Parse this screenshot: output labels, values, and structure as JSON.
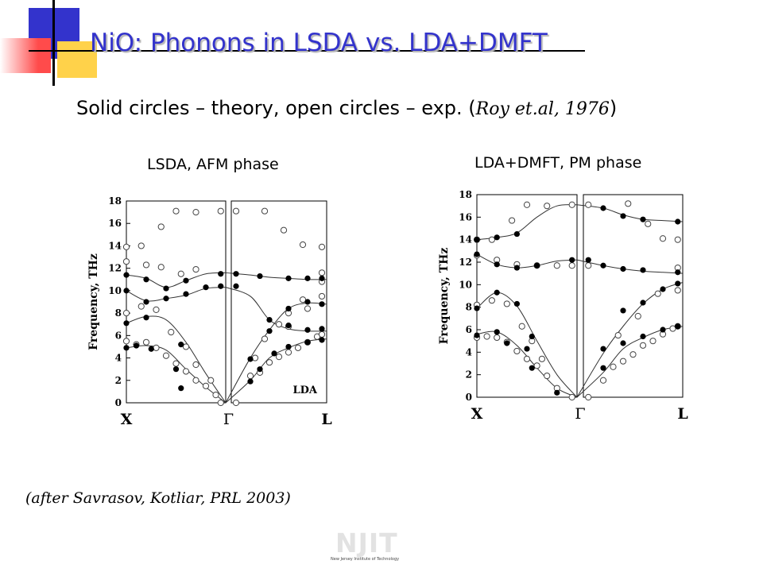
{
  "slide": {
    "title": "NiO: Phonons in LSDA vs. LDA+DMFT",
    "subtitle_main": "Solid circles – theory, open circles – exp. (",
    "subtitle_ref": "Roy et.al, 1976",
    "subtitle_close": ")",
    "citation": "(after Savrasov, Kotliar, PRL 2003)",
    "logo_text": "NJIT",
    "logo_subtext": "New Jersey Institute of Technology",
    "colors": {
      "title": "#3333cc",
      "deco_blue": "#3333cc",
      "deco_yellow": "#ffd24a",
      "deco_red": "#ff4b4b"
    }
  },
  "chart_data": [
    {
      "type": "scatter",
      "caption": "LSDA, AFM phase",
      "ylabel": "Frequency, THz",
      "ylim": [
        0,
        18
      ],
      "yticks": [
        "0",
        "2",
        "4",
        "6",
        "8",
        "10",
        "12",
        "14",
        "16",
        "18"
      ],
      "xlabels": [
        "X",
        "Γ",
        "L"
      ],
      "annotation": "LDA",
      "curves": [
        [
          [
            0,
            4.9
          ],
          [
            0.2,
            5.1
          ],
          [
            0.4,
            4.7
          ],
          [
            0.6,
            3.0
          ],
          [
            0.8,
            1.4
          ],
          [
            1,
            0
          ]
        ],
        [
          [
            0,
            7.1
          ],
          [
            0.2,
            7.7
          ],
          [
            0.4,
            7.4
          ],
          [
            0.6,
            5.4
          ],
          [
            0.8,
            2.6
          ],
          [
            1,
            0
          ]
        ],
        [
          [
            0,
            10.0
          ],
          [
            0.2,
            9.1
          ],
          [
            0.4,
            9.3
          ],
          [
            0.6,
            9.6
          ],
          [
            0.8,
            10.2
          ],
          [
            1,
            10.3
          ]
        ],
        [
          [
            0,
            11.4
          ],
          [
            0.2,
            11.1
          ],
          [
            0.4,
            10.3
          ],
          [
            0.6,
            10.9
          ],
          [
            0.8,
            11.5
          ],
          [
            1,
            11.6
          ]
        ],
        [
          [
            1,
            0
          ],
          [
            1.2,
            2.0
          ],
          [
            1.4,
            4.0
          ],
          [
            1.6,
            4.9
          ],
          [
            1.8,
            5.5
          ],
          [
            2,
            5.7
          ]
        ],
        [
          [
            1,
            0
          ],
          [
            1.2,
            4.0
          ],
          [
            1.4,
            6.5
          ],
          [
            1.6,
            8.4
          ],
          [
            1.8,
            8.9
          ],
          [
            2,
            8.8
          ]
        ],
        [
          [
            1,
            10.3
          ],
          [
            1.2,
            9.5
          ],
          [
            1.4,
            7.4
          ],
          [
            1.6,
            6.6
          ],
          [
            1.8,
            6.4
          ],
          [
            2,
            6.4
          ]
        ],
        [
          [
            1,
            11.6
          ],
          [
            1.2,
            11.4
          ],
          [
            1.4,
            11.2
          ],
          [
            1.6,
            11.1
          ],
          [
            1.8,
            11.0
          ],
          [
            2,
            11.0
          ]
        ]
      ],
      "theory": [
        [
          0,
          4.9
        ],
        [
          0.1,
          5.1
        ],
        [
          0.25,
          4.8
        ],
        [
          0.5,
          3.0
        ],
        [
          0.55,
          1.3
        ],
        [
          0,
          7.1
        ],
        [
          0.2,
          7.6
        ],
        [
          0.55,
          5.2
        ],
        [
          0,
          10.0
        ],
        [
          0.2,
          9.0
        ],
        [
          0.4,
          9.3
        ],
        [
          0.6,
          9.7
        ],
        [
          0.8,
          10.3
        ],
        [
          0.95,
          10.4
        ],
        [
          0,
          11.4
        ],
        [
          0.2,
          11.0
        ],
        [
          0.4,
          10.2
        ],
        [
          0.6,
          10.9
        ],
        [
          0.95,
          11.5
        ],
        [
          1.05,
          10.4
        ],
        [
          1.05,
          11.5
        ],
        [
          1.2,
          1.9
        ],
        [
          1.3,
          3.0
        ],
        [
          1.45,
          4.4
        ],
        [
          1.6,
          5.0
        ],
        [
          1.8,
          5.4
        ],
        [
          1.95,
          5.6
        ],
        [
          1.2,
          3.9
        ],
        [
          1.4,
          6.4
        ],
        [
          1.6,
          8.4
        ],
        [
          1.8,
          9.0
        ],
        [
          1.95,
          8.8
        ],
        [
          1.4,
          7.4
        ],
        [
          1.6,
          6.9
        ],
        [
          1.8,
          6.5
        ],
        [
          1.95,
          6.6
        ],
        [
          1.3,
          11.3
        ],
        [
          1.6,
          11.1
        ],
        [
          1.8,
          11.1
        ],
        [
          1.95,
          11.1
        ]
      ],
      "experiment": [
        [
          0,
          5.5
        ],
        [
          0.1,
          5.2
        ],
        [
          0.2,
          5.4
        ],
        [
          0.3,
          4.9
        ],
        [
          0.4,
          4.2
        ],
        [
          0.5,
          3.5
        ],
        [
          0.6,
          2.8
        ],
        [
          0.7,
          2.0
        ],
        [
          0.8,
          1.5
        ],
        [
          0.9,
          0.7
        ],
        [
          0,
          8.0
        ],
        [
          0.15,
          8.6
        ],
        [
          0.3,
          8.3
        ],
        [
          0.45,
          6.3
        ],
        [
          0.6,
          5.0
        ],
        [
          0.7,
          3.4
        ],
        [
          0.85,
          2.0
        ],
        [
          0,
          12.6
        ],
        [
          0.2,
          12.3
        ],
        [
          0.35,
          12.1
        ],
        [
          0.55,
          11.5
        ],
        [
          0.7,
          11.9
        ],
        [
          0,
          13.9
        ],
        [
          0.15,
          14.0
        ],
        [
          0.35,
          15.7
        ],
        [
          0.5,
          17.1
        ],
        [
          0.7,
          17.0
        ],
        [
          0.95,
          17.1
        ],
        [
          1.05,
          17.1
        ],
        [
          0.95,
          0
        ],
        [
          1.05,
          0
        ],
        [
          1.2,
          2.4
        ],
        [
          1.3,
          2.7
        ],
        [
          1.4,
          3.6
        ],
        [
          1.5,
          4.1
        ],
        [
          1.6,
          4.5
        ],
        [
          1.7,
          4.9
        ],
        [
          1.8,
          5.4
        ],
        [
          1.9,
          5.9
        ],
        [
          1.95,
          6.1
        ],
        [
          1.25,
          4.0
        ],
        [
          1.35,
          5.7
        ],
        [
          1.5,
          7.0
        ],
        [
          1.6,
          8.0
        ],
        [
          1.75,
          9.2
        ],
        [
          1.95,
          9.5
        ],
        [
          1.6,
          6.8
        ],
        [
          1.8,
          8.4
        ],
        [
          1.95,
          10.8
        ],
        [
          1.35,
          17.1
        ],
        [
          1.55,
          15.4
        ],
        [
          1.75,
          14.1
        ],
        [
          1.95,
          13.9
        ],
        [
          1.95,
          11.6
        ]
      ]
    },
    {
      "type": "scatter",
      "caption": "LDA+DMFT, PM phase",
      "ylabel": "Frequency, THz",
      "ylim": [
        0,
        18
      ],
      "yticks": [
        "0",
        "2",
        "4",
        "6",
        "8",
        "10",
        "12",
        "14",
        "16",
        "18"
      ],
      "xlabels": [
        "X",
        "Γ",
        "L"
      ],
      "annotation": "",
      "curves": [
        [
          [
            0,
            5.6
          ],
          [
            0.2,
            5.8
          ],
          [
            0.4,
            4.6
          ],
          [
            0.6,
            2.6
          ],
          [
            0.8,
            0.8
          ],
          [
            1,
            0
          ]
        ],
        [
          [
            0,
            7.9
          ],
          [
            0.2,
            9.3
          ],
          [
            0.4,
            8.1
          ],
          [
            0.6,
            5.0
          ],
          [
            0.8,
            2.0
          ],
          [
            1,
            0
          ]
        ],
        [
          [
            0,
            12.7
          ],
          [
            0.2,
            11.8
          ],
          [
            0.4,
            11.5
          ],
          [
            0.6,
            11.7
          ],
          [
            0.8,
            12.1
          ],
          [
            1,
            12.2
          ]
        ],
        [
          [
            0,
            14.0
          ],
          [
            0.2,
            14.2
          ],
          [
            0.4,
            14.6
          ],
          [
            0.6,
            16.0
          ],
          [
            0.8,
            17.0
          ],
          [
            1,
            17.1
          ]
        ],
        [
          [
            1,
            0
          ],
          [
            1.2,
            2.2
          ],
          [
            1.4,
            4.3
          ],
          [
            1.6,
            5.3
          ],
          [
            1.8,
            6.0
          ],
          [
            2,
            6.3
          ]
        ],
        [
          [
            1,
            0
          ],
          [
            1.2,
            3.9
          ],
          [
            1.4,
            6.3
          ],
          [
            1.6,
            8.3
          ],
          [
            1.8,
            9.6
          ],
          [
            2,
            10.2
          ]
        ],
        [
          [
            1,
            12.2
          ],
          [
            1.2,
            11.7
          ],
          [
            1.4,
            11.4
          ],
          [
            1.6,
            11.2
          ],
          [
            1.8,
            11.1
          ],
          [
            2,
            11.0
          ]
        ],
        [
          [
            1,
            17.1
          ],
          [
            1.2,
            16.8
          ],
          [
            1.4,
            16.2
          ],
          [
            1.6,
            15.8
          ],
          [
            1.8,
            15.7
          ],
          [
            2,
            15.6
          ]
        ]
      ],
      "theory": [
        [
          0,
          5.5
        ],
        [
          0.2,
          5.8
        ],
        [
          0.3,
          4.8
        ],
        [
          0.5,
          4.3
        ],
        [
          0.55,
          2.6
        ],
        [
          0.8,
          0.4
        ],
        [
          0,
          7.9
        ],
        [
          0.2,
          9.3
        ],
        [
          0.4,
          8.3
        ],
        [
          0.55,
          5.4
        ],
        [
          0,
          12.7
        ],
        [
          0.2,
          11.8
        ],
        [
          0.4,
          11.5
        ],
        [
          0.6,
          11.7
        ],
        [
          0.95,
          12.2
        ],
        [
          1.05,
          12.2
        ],
        [
          0,
          14.0
        ],
        [
          0.2,
          14.2
        ],
        [
          0.4,
          14.5
        ],
        [
          1.2,
          16.8
        ],
        [
          1.4,
          16.1
        ],
        [
          1.6,
          15.8
        ],
        [
          1.95,
          15.6
        ],
        [
          1.2,
          11.7
        ],
        [
          1.4,
          11.4
        ],
        [
          1.6,
          11.3
        ],
        [
          1.95,
          11.1
        ],
        [
          1.2,
          2.6
        ],
        [
          1.4,
          4.8
        ],
        [
          1.6,
          5.4
        ],
        [
          1.8,
          6.0
        ],
        [
          1.95,
          6.3
        ],
        [
          1.2,
          4.3
        ],
        [
          1.4,
          7.7
        ],
        [
          1.6,
          8.4
        ],
        [
          1.8,
          9.6
        ],
        [
          1.95,
          10.1
        ]
      ],
      "experiment": [
        [
          0,
          5.3
        ],
        [
          0.1,
          5.4
        ],
        [
          0.2,
          5.3
        ],
        [
          0.3,
          4.9
        ],
        [
          0.4,
          4.1
        ],
        [
          0.5,
          3.4
        ],
        [
          0.6,
          2.8
        ],
        [
          0.7,
          1.9
        ],
        [
          0.8,
          0.8
        ],
        [
          0,
          8.2
        ],
        [
          0.15,
          8.6
        ],
        [
          0.3,
          8.3
        ],
        [
          0.45,
          6.3
        ],
        [
          0.55,
          5.0
        ],
        [
          0.65,
          3.4
        ],
        [
          0,
          12.6
        ],
        [
          0.2,
          12.2
        ],
        [
          0.4,
          11.8
        ],
        [
          0.6,
          11.7
        ],
        [
          0.8,
          11.7
        ],
        [
          0.95,
          11.7
        ],
        [
          1.05,
          11.7
        ],
        [
          0,
          14.0
        ],
        [
          0.15,
          14.0
        ],
        [
          0.35,
          15.7
        ],
        [
          0.5,
          17.1
        ],
        [
          0.7,
          17.0
        ],
        [
          0.95,
          17.1
        ],
        [
          1.05,
          17.1
        ],
        [
          0.95,
          0
        ],
        [
          1.05,
          0
        ],
        [
          1.2,
          1.5
        ],
        [
          1.3,
          2.7
        ],
        [
          1.4,
          3.2
        ],
        [
          1.5,
          3.8
        ],
        [
          1.6,
          4.6
        ],
        [
          1.7,
          5.0
        ],
        [
          1.8,
          5.6
        ],
        [
          1.9,
          6.1
        ],
        [
          1.95,
          6.3
        ],
        [
          1.35,
          5.5
        ],
        [
          1.55,
          7.2
        ],
        [
          1.75,
          9.2
        ],
        [
          1.95,
          9.5
        ],
        [
          1.45,
          17.2
        ],
        [
          1.65,
          15.4
        ],
        [
          1.8,
          14.1
        ],
        [
          1.95,
          14.0
        ],
        [
          1.95,
          11.5
        ]
      ]
    }
  ]
}
